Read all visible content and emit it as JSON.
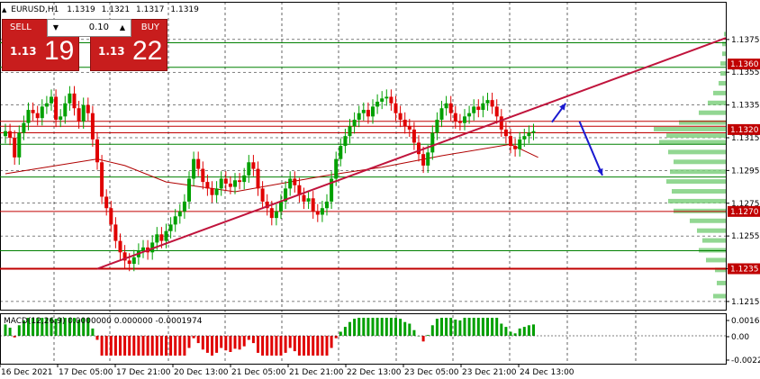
{
  "header": {
    "triangle": "▲",
    "symbol": "EURUSD,H1",
    "open": "1.1319",
    "high": "1.1321",
    "low": "1.1317",
    "close": "1.1319"
  },
  "trade_panel": {
    "sell_label": "SELL",
    "buy_label": "BUY",
    "volume": "0.10",
    "sell_big": "1.13",
    "sell_pips": "19",
    "buy_big": "1.13",
    "buy_pips": "22"
  },
  "indicator": {
    "label": "MACD(12,26,9) 0.0000000 0.000000 -0.0001974",
    "ticks": [
      "0.001620",
      "0.00",
      "-0.00228"
    ]
  },
  "colors": {
    "bull": "#00a000",
    "bear": "#e00000",
    "level": "#c00000",
    "trend": "#c0143c",
    "arrow": "#1a1ad0",
    "green_level": "#008000",
    "ma": "#b00000"
  },
  "chart_data": {
    "type": "candlestick",
    "price_ticks": [
      "1.1375",
      "1.1355",
      "1.1335",
      "1.1315",
      "1.1295",
      "1.1275",
      "1.1255",
      "1.1235",
      "1.1215"
    ],
    "price_range": [
      1.121,
      1.1398
    ],
    "time_labels": [
      "16 Dec 2021",
      "17 Dec 05:00",
      "17 Dec 21:00",
      "20 Dec 13:00",
      "21 Dec 05:00",
      "21 Dec 21:00",
      "22 Dec 13:00",
      "23 Dec 05:00",
      "23 Dec 21:00",
      "24 Dec 13:00"
    ],
    "level_labels": [
      {
        "value": 1.136,
        "text": "1.1360"
      },
      {
        "value": 1.132,
        "text": "1.1320"
      },
      {
        "value": 1.127,
        "text": "1.1270"
      },
      {
        "value": 1.1235,
        "text": "1.1235"
      }
    ],
    "red_levels": [
      1.1235,
      1.127,
      1.1318,
      1.1322,
      1.1325
    ],
    "green_levels": [
      1.1373,
      1.1358,
      1.1311,
      1.1291,
      1.1246
    ],
    "trendline": [
      {
        "bar": 20,
        "price": 1.1235
      },
      {
        "bar": 122,
        "price": 1.134
      }
    ],
    "ma_line": [
      [
        0,
        1.1293
      ],
      [
        20,
        1.1302
      ],
      [
        26,
        1.1298
      ],
      [
        35,
        1.1288
      ],
      [
        50,
        1.1282
      ],
      [
        60,
        1.1287
      ],
      [
        70,
        1.1292
      ],
      [
        82,
        1.1297
      ],
      [
        95,
        1.1304
      ],
      [
        110,
        1.1311
      ],
      [
        116,
        1.1303
      ]
    ],
    "arrows": [
      {
        "from": [
          1.13245,
          119
        ],
        "to": [
          1.1336,
          122
        ]
      },
      {
        "from": [
          1.1325,
          125
        ],
        "to": [
          1.1292,
          130
        ]
      }
    ],
    "close_prices": [
      1.1319,
      1.1315,
      1.1303,
      1.1318,
      1.1324,
      1.1332,
      1.133,
      1.1327,
      1.1334,
      1.1336,
      1.134,
      1.1326,
      1.1328,
      1.1336,
      1.1342,
      1.1333,
      1.1325,
      1.1335,
      1.133,
      1.1314,
      1.13,
      1.1279,
      1.1272,
      1.1262,
      1.1252,
      1.1245,
      1.124,
      1.1238,
      1.1242,
      1.1246,
      1.1248,
      1.1245,
      1.1251,
      1.1256,
      1.1252,
      1.1258,
      1.1262,
      1.1267,
      1.127,
      1.1276,
      1.129,
      1.1302,
      1.1296,
      1.1288,
      1.1284,
      1.128,
      1.1284,
      1.129,
      1.1287,
      1.1285,
      1.1289,
      1.1288,
      1.1292,
      1.13,
      1.1296,
      1.1284,
      1.1276,
      1.1272,
      1.1266,
      1.127,
      1.1276,
      1.1284,
      1.129,
      1.1286,
      1.128,
      1.1276,
      1.1278,
      1.127,
      1.1268,
      1.1272,
      1.1276,
      1.129,
      1.1302,
      1.131,
      1.1316,
      1.1322,
      1.1326,
      1.133,
      1.1332,
      1.1328,
      1.1334,
      1.1337,
      1.1339,
      1.134,
      1.1336,
      1.133,
      1.1326,
      1.1322,
      1.132,
      1.1312,
      1.1305,
      1.1298,
      1.1306,
      1.1318,
      1.1326,
      1.1333,
      1.1336,
      1.133,
      1.1325,
      1.1324,
      1.1328,
      1.133,
      1.1334,
      1.1332,
      1.1336,
      1.1338,
      1.1334,
      1.1328,
      1.132,
      1.1316,
      1.131,
      1.1308,
      1.1314,
      1.1316,
      1.1318,
      1.1319
    ],
    "volume_profile": [
      [
        1.1378,
        2
      ],
      [
        1.1372,
        4
      ],
      [
        1.1366,
        4
      ],
      [
        1.136,
        6
      ],
      [
        1.1354,
        6
      ],
      [
        1.1348,
        8
      ],
      [
        1.1342,
        14
      ],
      [
        1.1336,
        20
      ],
      [
        1.133,
        30
      ],
      [
        1.1324,
        52
      ],
      [
        1.132,
        80
      ],
      [
        1.1316,
        66
      ],
      [
        1.1312,
        74
      ],
      [
        1.1306,
        64
      ],
      [
        1.13,
        58
      ],
      [
        1.1294,
        62
      ],
      [
        1.1288,
        66
      ],
      [
        1.1282,
        60
      ],
      [
        1.1276,
        64
      ],
      [
        1.127,
        58
      ],
      [
        1.1264,
        40
      ],
      [
        1.1258,
        32
      ],
      [
        1.1252,
        26
      ],
      [
        1.1246,
        30
      ],
      [
        1.124,
        22
      ],
      [
        1.1234,
        12
      ],
      [
        1.1226,
        10
      ],
      [
        1.1218,
        14
      ]
    ]
  }
}
